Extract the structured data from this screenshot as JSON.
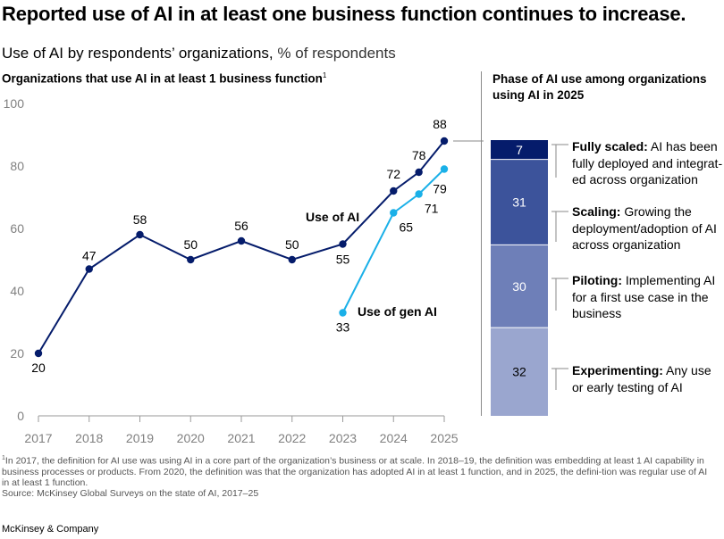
{
  "title": "Reported use of AI in at least one business function continues to increase.",
  "subtitle_bold": "Use of AI by respondents’ organizations,",
  "subtitle_rest": " % of respondents",
  "left_heading": "Organizations that use AI in at least 1 business function",
  "left_heading_sup": "1",
  "right_heading": "Phase of AI use among organizations using AI in 2025",
  "chart_data": [
    {
      "type": "line",
      "x_ticks": [
        "2017",
        "2018",
        "2019",
        "2020",
        "2021",
        "2022",
        "2023",
        "2024",
        "2025"
      ],
      "ylim": [
        0,
        100
      ],
      "y_ticks": [
        "0",
        "20",
        "40",
        "60",
        "80",
        "100"
      ],
      "grid": false,
      "series": [
        {
          "name": "Use of AI",
          "color": "#051c6b",
          "points": [
            {
              "x": 2017,
              "y": 20,
              "label": "20"
            },
            {
              "x": 2018,
              "y": 47,
              "label": "47"
            },
            {
              "x": 2019,
              "y": 58,
              "label": "58"
            },
            {
              "x": 2020,
              "y": 50,
              "label": "50"
            },
            {
              "x": 2021,
              "y": 56,
              "label": "56"
            },
            {
              "x": 2022,
              "y": 50,
              "label": "50"
            },
            {
              "x": 2023,
              "y": 55,
              "label": "55"
            },
            {
              "x": 2024,
              "y": 72,
              "label": "72"
            },
            {
              "x": 2024.5,
              "y": 78,
              "label": "78"
            },
            {
              "x": 2025,
              "y": 88,
              "label": "88"
            }
          ]
        },
        {
          "name": "Use of gen AI",
          "color": "#1ab0e8",
          "points": [
            {
              "x": 2023,
              "y": 33,
              "label": "33"
            },
            {
              "x": 2024,
              "y": 65,
              "label": "65"
            },
            {
              "x": 2024.5,
              "y": 71,
              "label": "71"
            },
            {
              "x": 2025,
              "y": 79,
              "label": "79"
            }
          ]
        }
      ]
    },
    {
      "type": "bar",
      "stacked": true,
      "segments": [
        {
          "name": "Experimenting",
          "value": 32,
          "label": "32",
          "color": "#9aa6cf",
          "text_color": "#000000"
        },
        {
          "name": "Piloting",
          "value": 30,
          "label": "30",
          "color": "#6e7fb8",
          "text_color": "#ffffff"
        },
        {
          "name": "Scaling",
          "value": 31,
          "label": "31",
          "color": "#3c539b",
          "text_color": "#ffffff"
        },
        {
          "name": "Fully scaled",
          "value": 7,
          "label": "7",
          "color": "#051c6b",
          "text_color": "#ffffff"
        }
      ]
    }
  ],
  "phases": [
    {
      "name": "Fully scaled:",
      "desc": " AI has been fully deployed and integrat-ed across organization"
    },
    {
      "name": "Scaling:",
      "desc": " Growing the deployment/adoption of AI across organization"
    },
    {
      "name": "Piloting:",
      "desc": " Implementing AI for a first use case in the business"
    },
    {
      "name": "Experimenting:",
      "desc": " Any use or early testing of AI"
    }
  ],
  "footnote_sup": "1",
  "footnote": "In 2017, the definition for AI use was using AI in a core part of the organization’s business or at scale. In 2018–19, the definition was embedding at least 1 AI capability in business processes or products. From 2020, the definition was that the organization has adopted AI in at least 1 function, and in 2025, the defini-tion was regular use of AI in at least 1 function.",
  "source": "Source: McKinsey Global Surveys on the state of AI, 2017–25",
  "brand": "McKinsey & Company"
}
